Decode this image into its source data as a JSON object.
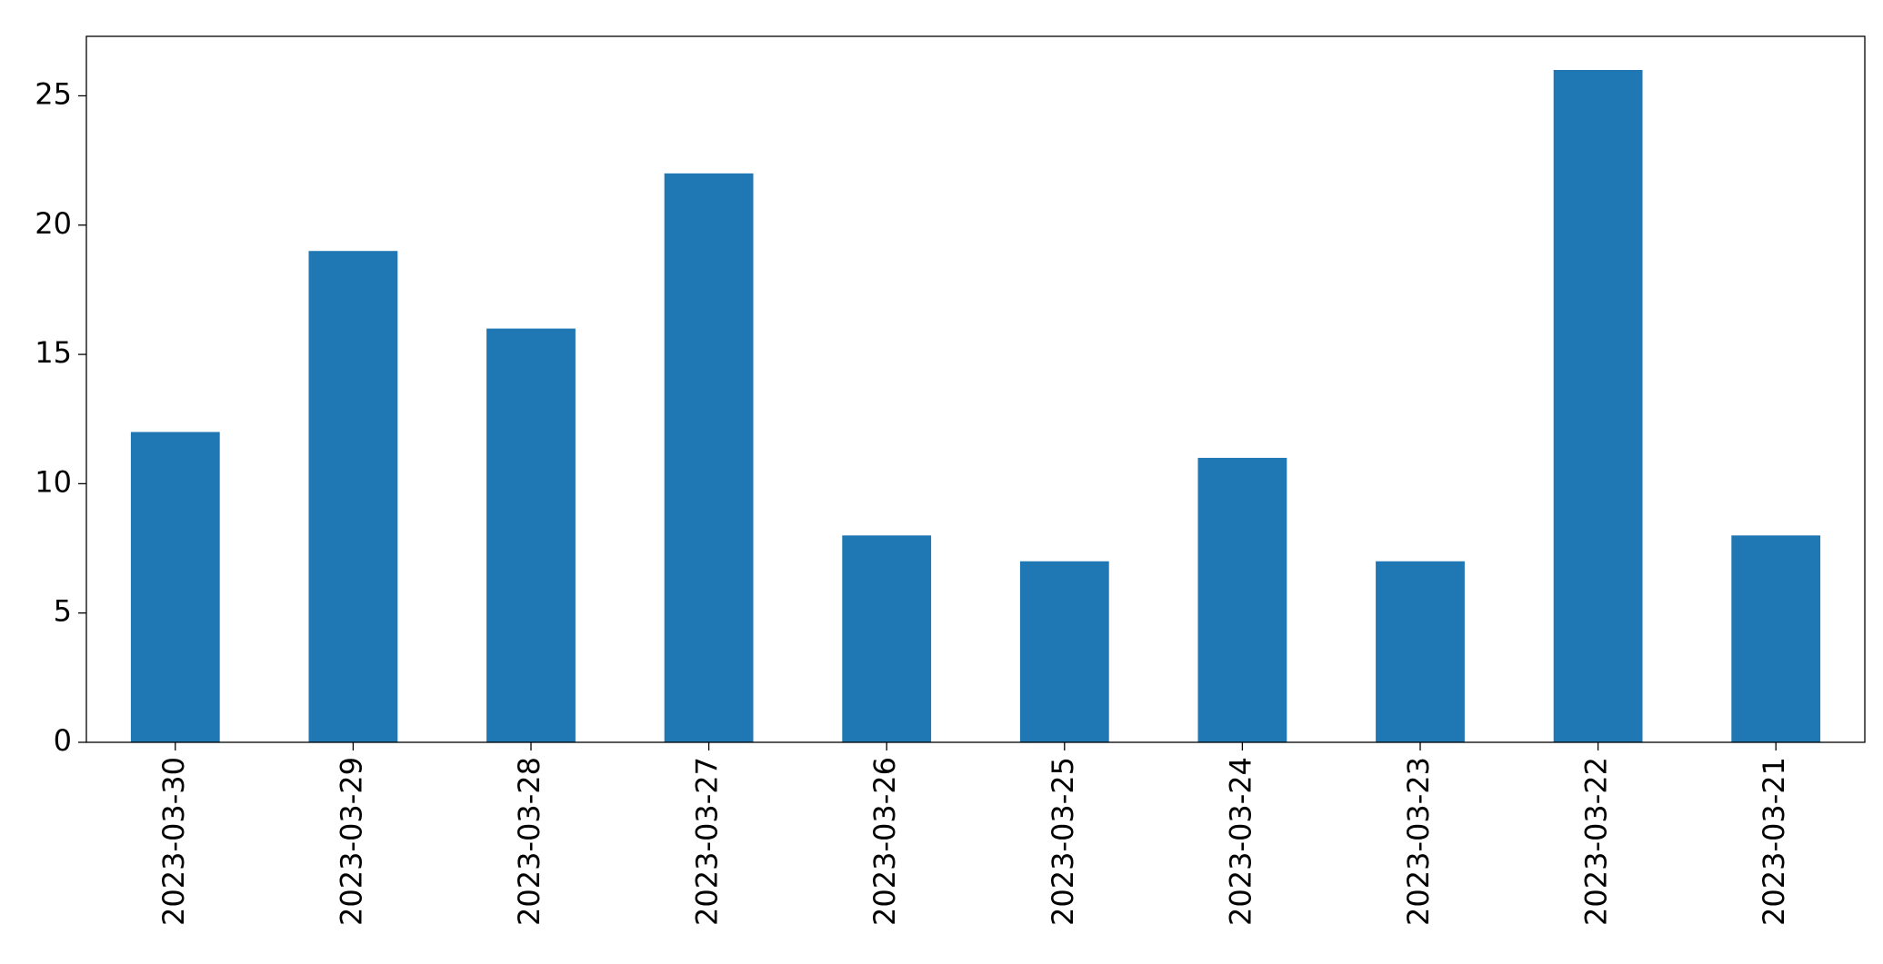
{
  "chart_data": {
    "type": "bar",
    "categories": [
      "2023-03-30",
      "2023-03-29",
      "2023-03-28",
      "2023-03-27",
      "2023-03-26",
      "2023-03-25",
      "2023-03-24",
      "2023-03-23",
      "2023-03-22",
      "2023-03-21"
    ],
    "values": [
      12,
      19,
      16,
      22,
      8,
      7,
      11,
      7,
      26,
      8
    ],
    "color": "#1f77b4",
    "ylim": [
      0,
      27.3
    ],
    "yticks": [
      0,
      5,
      10,
      15,
      20,
      25
    ],
    "grid": false
  }
}
